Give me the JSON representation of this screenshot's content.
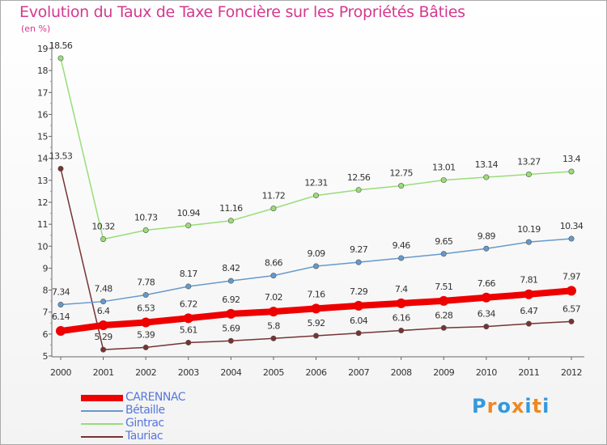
{
  "chart_data": {
    "type": "line",
    "title": "Evolution du Taux de Taxe Foncière sur les Propriétés Bâties",
    "ylabel": "(en %)",
    "xlabel": "",
    "x": [
      "2000",
      "2001",
      "2002",
      "2003",
      "2004",
      "2005",
      "2006",
      "2007",
      "2008",
      "2009",
      "2010",
      "2011",
      "2012"
    ],
    "ylim": [
      5,
      19
    ],
    "yticks": [
      "5",
      "6",
      "7",
      "8",
      "9",
      "10",
      "11",
      "12",
      "13",
      "14",
      "15",
      "16",
      "17",
      "18",
      "19"
    ],
    "grid": false,
    "legend_position": "bottom-left",
    "series": [
      {
        "name": "CARENNAC",
        "color": "#ee0000",
        "values": [
          6.14,
          6.4,
          6.53,
          6.72,
          6.92,
          7.02,
          7.16,
          7.29,
          7.4,
          7.51,
          7.66,
          7.81,
          7.97
        ],
        "labels": [
          "6.14",
          "6.4",
          "6.53",
          "6.72",
          "6.92",
          "7.02",
          "7.16",
          "7.29",
          "7.4",
          "7.51",
          "7.66",
          "7.81",
          "7.97"
        ]
      },
      {
        "name": "Bétaille",
        "color": "#6699cc",
        "values": [
          7.34,
          7.48,
          7.78,
          8.17,
          8.42,
          8.66,
          9.09,
          9.27,
          9.46,
          9.65,
          9.89,
          10.19,
          10.34
        ],
        "labels": [
          "7.34",
          "7.48",
          "7.78",
          "8.17",
          "8.42",
          "8.66",
          "9.09",
          "9.27",
          "9.46",
          "9.65",
          "9.89",
          "10.19",
          "10.34"
        ]
      },
      {
        "name": "Gintrac",
        "color": "#99dd77",
        "values": [
          18.56,
          10.32,
          10.73,
          10.94,
          11.16,
          11.72,
          12.31,
          12.56,
          12.75,
          13.01,
          13.14,
          13.27,
          13.4
        ],
        "labels": [
          "18.56",
          "10.32",
          "10.73",
          "10.94",
          "11.16",
          "11.72",
          "12.31",
          "12.56",
          "12.75",
          "13.01",
          "13.14",
          "13.27",
          "13.4"
        ]
      },
      {
        "name": "Tauriac",
        "color": "#773333",
        "values": [
          13.53,
          5.29,
          5.39,
          5.61,
          5.69,
          5.8,
          5.92,
          6.04,
          6.16,
          6.28,
          6.34,
          6.47,
          6.57
        ],
        "labels": [
          "13.53",
          "5.29",
          "5.39",
          "5.61",
          "5.69",
          "5.8",
          "5.92",
          "6.04",
          "6.16",
          "6.28",
          "6.34",
          "6.47",
          "6.57"
        ]
      }
    ]
  },
  "brand": {
    "letters": [
      "P",
      "r",
      "o",
      "x",
      "i",
      "t",
      "i"
    ],
    "colors": [
      "#3399dd",
      "#ee8822",
      "#3399dd",
      "#ee8822",
      "#3399dd",
      "#ee8822",
      "#3399dd"
    ]
  }
}
